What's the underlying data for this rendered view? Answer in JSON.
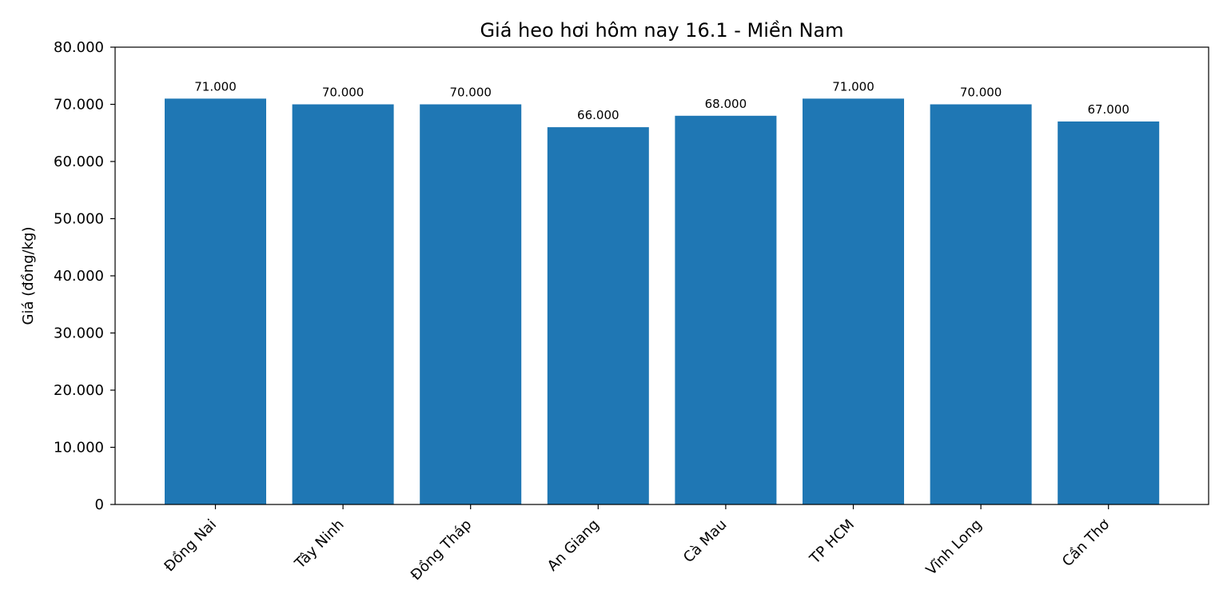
{
  "chart_data": {
    "type": "bar",
    "title": "Giá heo hơi hôm nay 16.1 - Miền Nam",
    "xlabel": "",
    "ylabel": "Giá (đồng/kg)",
    "categories": [
      "Đồng Nai",
      "Tây Ninh",
      "Đồng Tháp",
      "An Giang",
      "Cà Mau",
      "TP HCM",
      "Vĩnh Long",
      "Cần Thơ"
    ],
    "values": [
      71000,
      70000,
      70000,
      66000,
      68000,
      71000,
      70000,
      67000
    ],
    "value_labels": [
      "71.000",
      "70.000",
      "70.000",
      "66.000",
      "68.000",
      "71.000",
      "70.000",
      "67.000"
    ],
    "ylim": [
      0,
      80000
    ],
    "yticks": [
      0,
      10000,
      20000,
      30000,
      40000,
      50000,
      60000,
      70000,
      80000
    ],
    "ytick_labels": [
      "0",
      "10.000",
      "20.000",
      "30.000",
      "40.000",
      "50.000",
      "60.000",
      "70.000",
      "80.000"
    ],
    "bar_color": "#1f77b4",
    "grid": false,
    "legend": "none"
  }
}
